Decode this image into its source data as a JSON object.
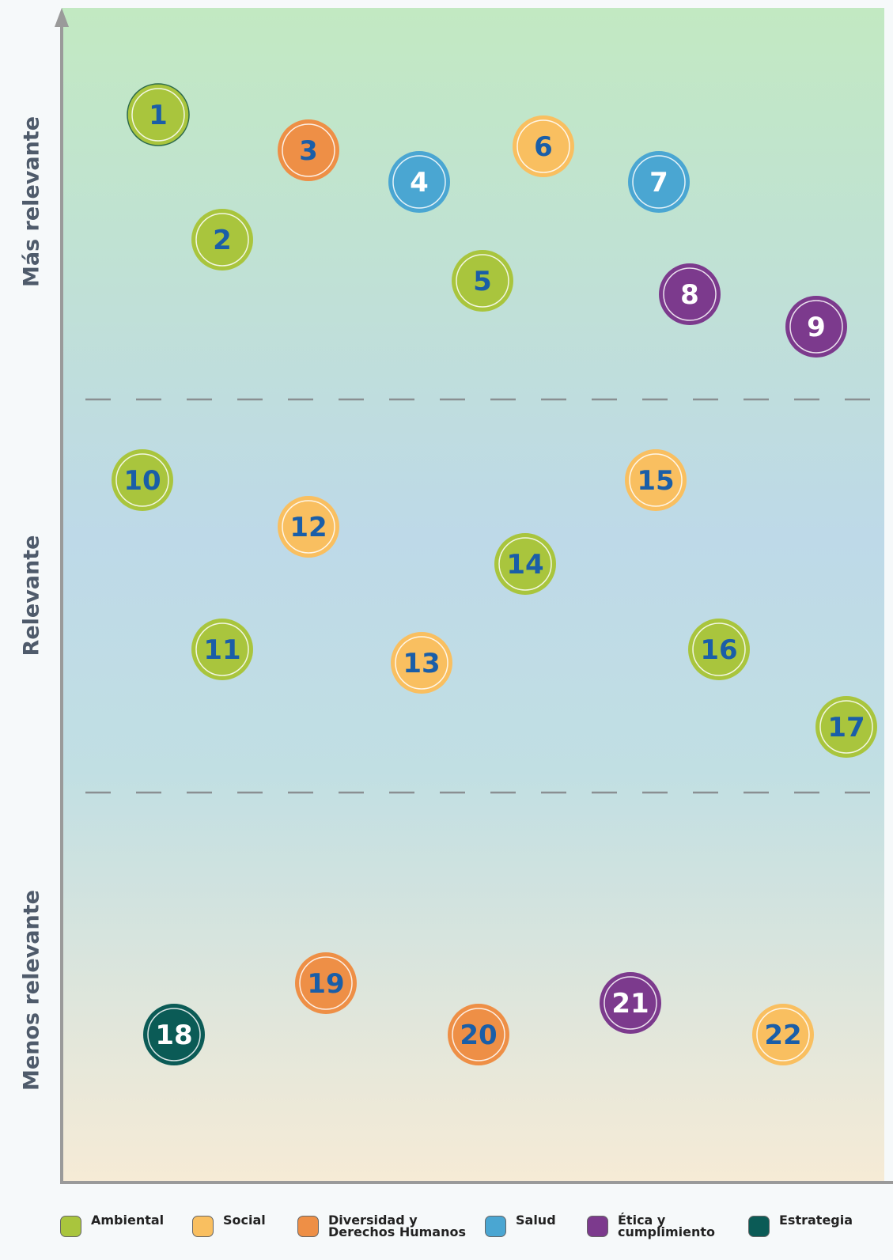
{
  "zones": [
    "Más relevante",
    "Relevante",
    "Menos relevante"
  ],
  "categories": [
    {
      "name": "Ambiental",
      "color": "#a9c53d",
      "text_color": "#1a5ea8",
      "items": [
        "1",
        "2",
        "5",
        "10",
        "11",
        "14",
        "16",
        "17"
      ]
    },
    {
      "name": "Social",
      "color": "#f9bf60",
      "text_color": "#1a5ea8",
      "items": [
        "6",
        "12",
        "13",
        "15",
        "22"
      ]
    },
    {
      "name": "Diversidad y Derechos Humanos",
      "color": "#ee8f46",
      "text_color": "#1a5ea8",
      "items": [
        "3",
        "19",
        "20"
      ]
    },
    {
      "name": "Salud",
      "color": "#4aa6d2",
      "text_color": "#ffffff",
      "items": [
        "4",
        "7"
      ]
    },
    {
      "name": "Ética y cumplimiento",
      "color": "#7c3a8d",
      "text_color": "#ffffff",
      "items": [
        "8",
        "9",
        "21"
      ]
    },
    {
      "name": "Estrategia",
      "color": "#0b5b56",
      "text_color": "#ffffff",
      "items": [
        "18"
      ]
    }
  ]
}
